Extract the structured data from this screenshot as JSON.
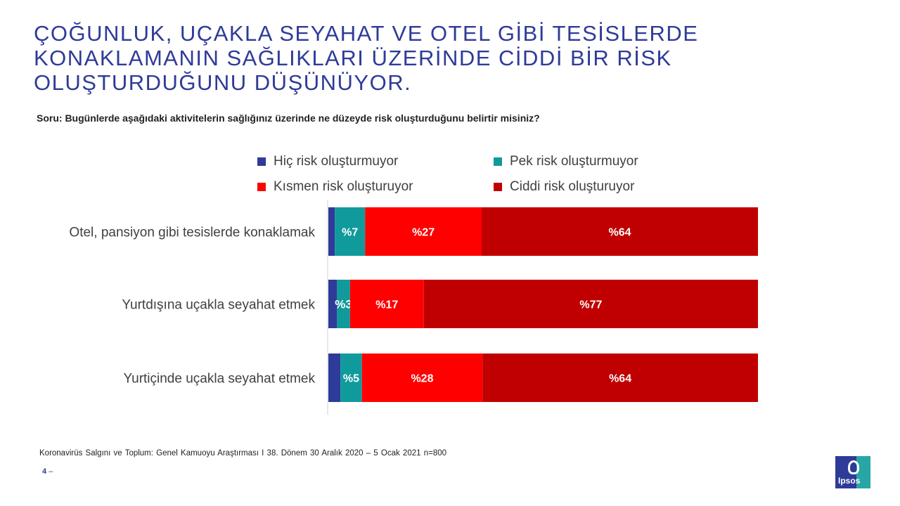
{
  "title_lines": [
    "ÇOĞUNLUK, UÇAKLA SEYAHAT VE OTEL GİBİ TESİSLERDE",
    "KONAKLAMANIN SAĞLIKLARI ÜZERİNDE CİDDİ BİR RİSK",
    "OLUŞTURDUĞUNU DÜŞÜNÜYOR."
  ],
  "question": "Soru: Bugünlerde aşağıdaki aktivitelerin sağlığınız üzerinde ne düzeyde risk oluşturduğunu belirtir misiniz?",
  "footer": "Koronavirüs Salgını ve Toplum: Genel Kamuoyu Araştırması I 38. Dönem 30 Aralık 2020 – 5 Ocak 2021 n=800",
  "page_number": "4",
  "page_suffix": "–",
  "logo_text": "Ipsos",
  "chart_data": {
    "type": "bar",
    "orientation": "horizontal",
    "stacked": true,
    "unit": "%",
    "value_label_prefix": "%",
    "categories": [
      "Otel, pansiyon gibi tesislerde konaklamak",
      "Yurtdışına uçakla seyahat etmek",
      "Yurtiçinde uçakla seyahat etmek"
    ],
    "series": [
      {
        "name": "Hiç risk oluşturmuyor",
        "color": "#2e3b98",
        "values": [
          1.5,
          2,
          2.8
        ],
        "show_labels": false
      },
      {
        "name": "Pek risk oluşturmuyor",
        "color": "#119a9c",
        "values": [
          7,
          3,
          5
        ],
        "show_labels": true
      },
      {
        "name": "Kısmen risk oluşturuyor",
        "color": "#ff0000",
        "values": [
          27,
          17,
          28
        ],
        "show_labels": true
      },
      {
        "name": "Ciddi risk oluşturuyor",
        "color": "#c00000",
        "values": [
          64,
          77,
          64
        ],
        "show_labels": true
      }
    ],
    "xlim": [
      0,
      100
    ],
    "legend_position": "top",
    "grid": false
  }
}
